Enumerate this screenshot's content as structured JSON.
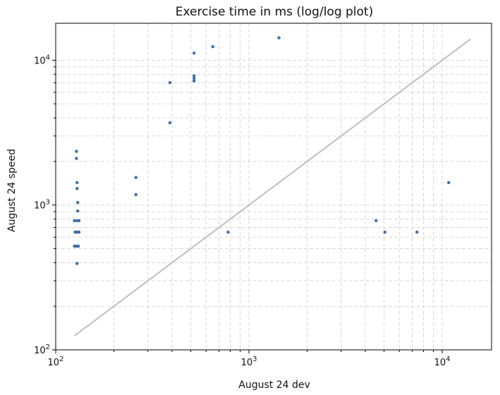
{
  "chart_data": {
    "type": "scatter",
    "title": "Exercise time in ms (log/log plot)",
    "xlabel": "August 24 dev",
    "ylabel": "August 24 speed",
    "xscale": "log",
    "yscale": "log",
    "xlim": [
      100,
      18000
    ],
    "ylim": [
      100,
      18000
    ],
    "grid": true,
    "grid_style": "dashed",
    "legend": "none",
    "point_color": "#3b6ea5",
    "reference_line": {
      "color": "#bfbfbf",
      "from": [
        125,
        125
      ],
      "to": [
        14000,
        14000
      ]
    },
    "x_major_ticks": [
      {
        "value": 100,
        "base": "10",
        "exp": "2"
      },
      {
        "value": 1000,
        "base": "10",
        "exp": "3"
      },
      {
        "value": 10000,
        "base": "10",
        "exp": "4"
      }
    ],
    "y_major_ticks": [
      {
        "value": 100,
        "base": "10",
        "exp": "2"
      },
      {
        "value": 1000,
        "base": "10",
        "exp": "3"
      },
      {
        "value": 10000,
        "base": "10",
        "exp": "4"
      }
    ],
    "points": [
      {
        "x": 128,
        "y": 2350
      },
      {
        "x": 128,
        "y": 2100
      },
      {
        "x": 129,
        "y": 1430
      },
      {
        "x": 129,
        "y": 1300
      },
      {
        "x": 130,
        "y": 1040
      },
      {
        "x": 130,
        "y": 910
      },
      {
        "x": 129,
        "y": 780
      },
      {
        "x": 125,
        "y": 780
      },
      {
        "x": 132,
        "y": 780
      },
      {
        "x": 126,
        "y": 650
      },
      {
        "x": 129,
        "y": 650
      },
      {
        "x": 132,
        "y": 650
      },
      {
        "x": 125,
        "y": 520
      },
      {
        "x": 128,
        "y": 520
      },
      {
        "x": 131,
        "y": 520
      },
      {
        "x": 129,
        "y": 395
      },
      {
        "x": 260,
        "y": 1550
      },
      {
        "x": 260,
        "y": 1180
      },
      {
        "x": 390,
        "y": 7000
      },
      {
        "x": 390,
        "y": 3700
      },
      {
        "x": 520,
        "y": 11200
      },
      {
        "x": 520,
        "y": 7800
      },
      {
        "x": 520,
        "y": 7500
      },
      {
        "x": 520,
        "y": 7200
      },
      {
        "x": 650,
        "y": 12400
      },
      {
        "x": 1430,
        "y": 14300
      },
      {
        "x": 780,
        "y": 650
      },
      {
        "x": 4550,
        "y": 780
      },
      {
        "x": 5050,
        "y": 650
      },
      {
        "x": 7400,
        "y": 650
      },
      {
        "x": 10800,
        "y": 1430
      }
    ]
  }
}
